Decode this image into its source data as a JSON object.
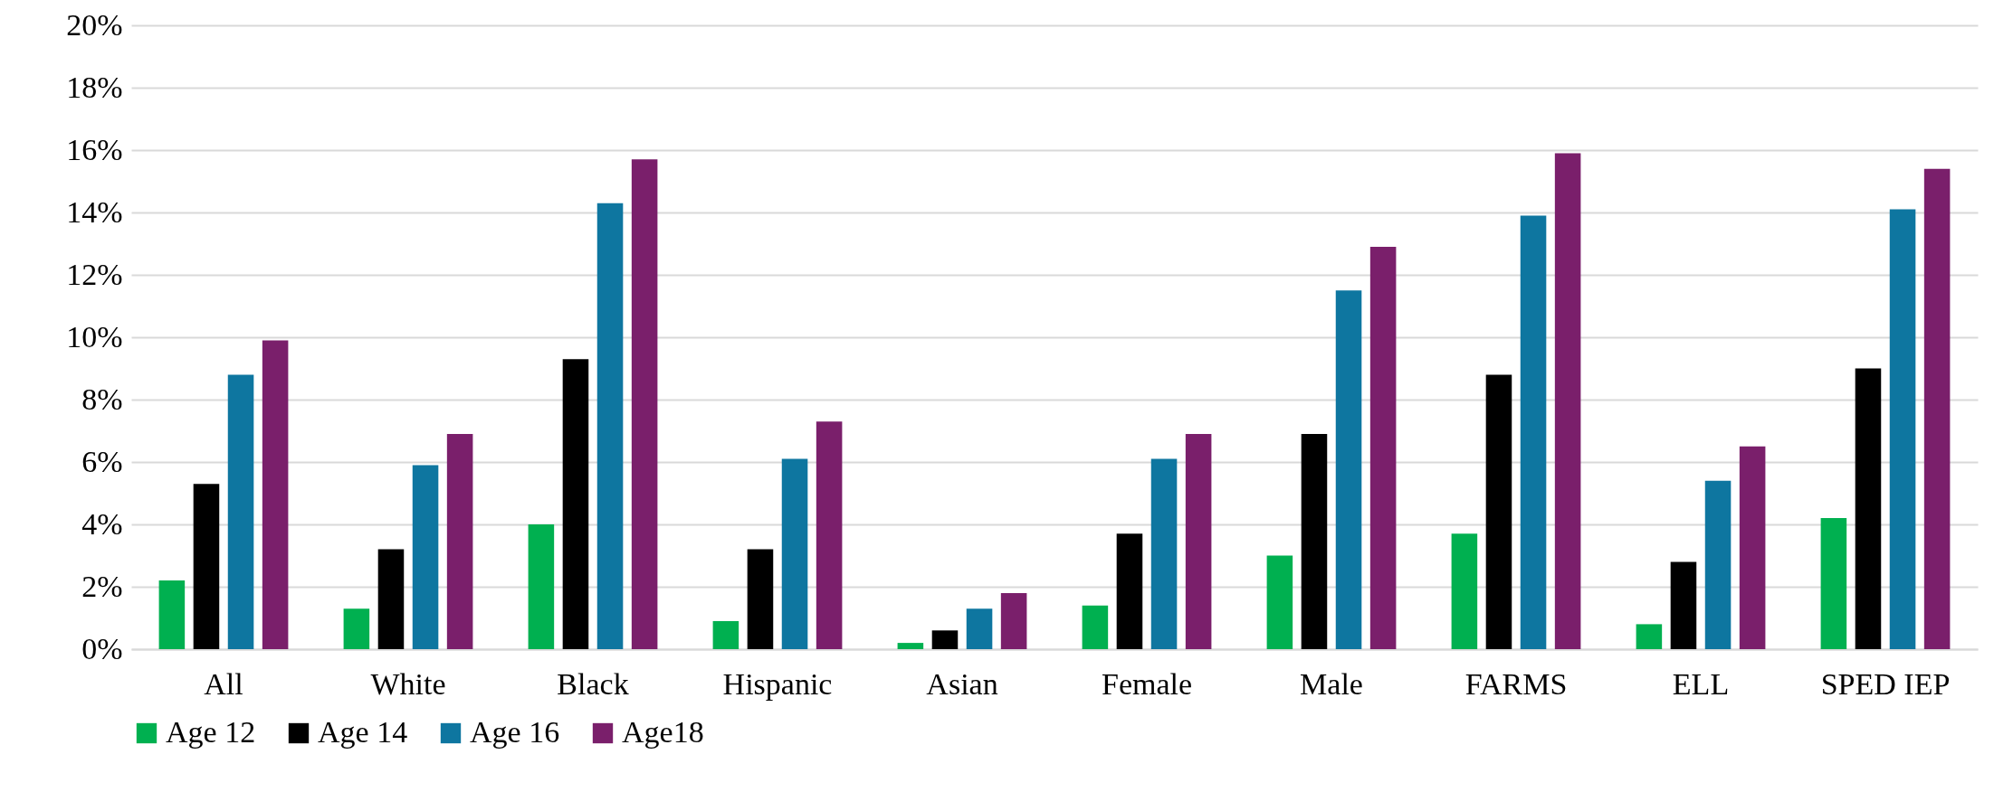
{
  "chart_data": {
    "type": "bar",
    "categories": [
      "All",
      "White",
      "Black",
      "Hispanic",
      "Asian",
      "Female",
      "Male",
      "FARMS",
      "ELL",
      "SPED IEP"
    ],
    "series": [
      {
        "name": "Age 12",
        "color": "#00b050",
        "values": [
          2.2,
          1.3,
          4.0,
          0.9,
          0.2,
          1.4,
          3.0,
          3.7,
          0.8,
          4.2
        ]
      },
      {
        "name": "Age 14",
        "color": "#000000",
        "values": [
          5.3,
          3.2,
          9.3,
          3.2,
          0.6,
          3.7,
          6.9,
          8.8,
          2.8,
          9.0
        ]
      },
      {
        "name": "Age 16",
        "color": "#0e76a0",
        "values": [
          8.8,
          5.9,
          14.3,
          6.1,
          1.3,
          6.1,
          11.5,
          13.9,
          5.4,
          14.1
        ]
      },
      {
        "name": "Age18",
        "color": "#7a1f6b",
        "values": [
          9.9,
          6.9,
          15.7,
          7.3,
          1.8,
          6.9,
          12.9,
          15.9,
          6.5,
          15.4
        ]
      }
    ],
    "ylim": [
      0,
      20
    ],
    "yticks": [
      {
        "value": 0,
        "label": "0%"
      },
      {
        "value": 2,
        "label": "2%"
      },
      {
        "value": 4,
        "label": "4%"
      },
      {
        "value": 6,
        "label": "6%"
      },
      {
        "value": 8,
        "label": "8%"
      },
      {
        "value": 10,
        "label": "10%"
      },
      {
        "value": 12,
        "label": "12%"
      },
      {
        "value": 14,
        "label": "14%"
      },
      {
        "value": 16,
        "label": "16%"
      },
      {
        "value": 18,
        "label": "18%"
      },
      {
        "value": 20,
        "label": "20%"
      }
    ],
    "grid": "y",
    "legend": "bottom"
  }
}
